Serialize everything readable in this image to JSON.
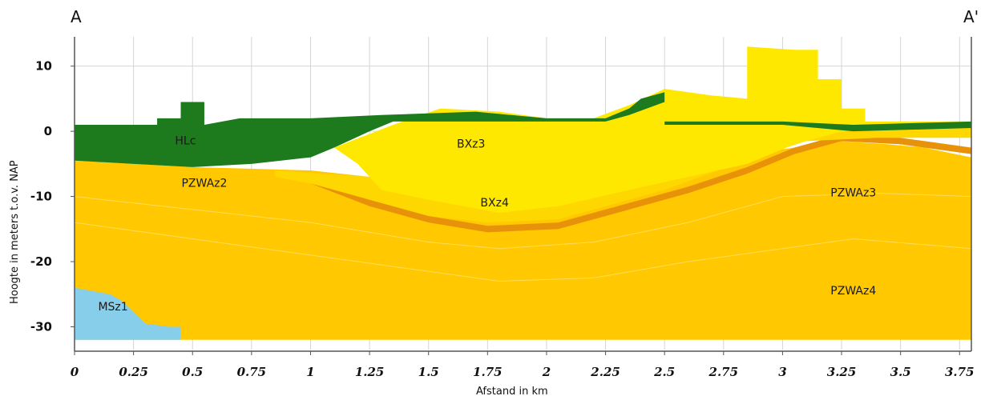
{
  "chart_data": {
    "type": "area",
    "section_labels": {
      "left": "A",
      "right": "A'"
    },
    "xlabel": "Afstand in km",
    "ylabel": "Hoogte in meters t.o.v. NAP",
    "xlim": [
      0,
      3.8
    ],
    "ylim": [
      -33.5,
      14.5
    ],
    "x_ticks": [
      "0",
      "0.25",
      "0.5",
      "0.75",
      "1",
      "1.25",
      "1.5",
      "1.75",
      "2",
      "2.25",
      "2.5",
      "2.75",
      "3",
      "3.25",
      "3.5",
      "3.75"
    ],
    "y_ticks": [
      "10",
      "0",
      "-10",
      "-20",
      "-30"
    ],
    "grid": true,
    "layers": [
      {
        "id": "PZWAz4",
        "label": "PZWAz4",
        "color": "#ffc800",
        "label_pos": [
          3.3,
          -25
        ],
        "top": [
          [
            0,
            -4.5
          ],
          [
            0.5,
            -5.5
          ],
          [
            1,
            -6
          ],
          [
            1.5,
            -8
          ],
          [
            2,
            -9
          ],
          [
            2.5,
            -6
          ],
          [
            2.85,
            -3.5
          ],
          [
            3.05,
            -2.5
          ],
          [
            3.25,
            -1.5
          ],
          [
            3.45,
            -2
          ],
          [
            3.6,
            -2.5
          ],
          [
            3.8,
            -4
          ]
        ],
        "bottom": [
          [
            0,
            -32
          ],
          [
            3.8,
            -32
          ]
        ]
      },
      {
        "id": "PZWAz3",
        "label": "PZWAz3",
        "color": "#ffc800",
        "label_pos": [
          3.3,
          -10
        ]
      },
      {
        "id": "PZWAz2",
        "label": "PZWAz2",
        "color": "#ffc800",
        "label_pos": [
          0.55,
          -8.5
        ]
      },
      {
        "id": "BXz4",
        "label": "BXz4",
        "color": "#ffd700",
        "label_pos": [
          1.78,
          -11.5
        ],
        "top": [
          [
            0.85,
            -6
          ],
          [
            1.25,
            -7
          ],
          [
            1.5,
            -6.5
          ],
          [
            1.9,
            -6
          ],
          [
            2.2,
            -4.5
          ],
          [
            2.5,
            -3
          ],
          [
            2.85,
            -1
          ],
          [
            3.2,
            0.5
          ],
          [
            3.5,
            1
          ],
          [
            3.8,
            1
          ]
        ],
        "bottom": [
          [
            0.85,
            -7
          ],
          [
            1,
            -8
          ],
          [
            1.3,
            -11
          ],
          [
            1.5,
            -13
          ],
          [
            1.75,
            -14
          ],
          [
            2.05,
            -13.5
          ],
          [
            2.2,
            -12
          ],
          [
            2.5,
            -9
          ],
          [
            2.8,
            -5
          ],
          [
            3.1,
            -1.5
          ],
          [
            3.4,
            -1
          ],
          [
            3.8,
            -1
          ]
        ]
      },
      {
        "id": "BXz3",
        "label": "BXz3",
        "color": "#ffe800",
        "label_pos": [
          1.68,
          -2.5
        ],
        "top": [
          [
            1.1,
            -2.5
          ],
          [
            1.35,
            1
          ],
          [
            1.55,
            3.5
          ],
          [
            1.8,
            3
          ],
          [
            2,
            2
          ],
          [
            2.2,
            2
          ],
          [
            2.35,
            4
          ],
          [
            2.5,
            6.5
          ],
          [
            2.7,
            5.5
          ],
          [
            2.85,
            5
          ],
          [
            2.85,
            13
          ],
          [
            3.05,
            12.5
          ],
          [
            3.15,
            12.5
          ],
          [
            3.15,
            8
          ],
          [
            3.25,
            8
          ],
          [
            3.25,
            3.5
          ],
          [
            3.35,
            3.5
          ],
          [
            3.35,
            1.5
          ],
          [
            3.8,
            1.5
          ]
        ],
        "bottom": [
          [
            1.1,
            -2.5
          ],
          [
            1.2,
            -5
          ],
          [
            1.3,
            -9
          ],
          [
            1.5,
            -10.5
          ],
          [
            1.8,
            -12.5
          ],
          [
            2.05,
            -11.5
          ],
          [
            2.35,
            -9
          ],
          [
            2.6,
            -7
          ],
          [
            2.85,
            -5
          ],
          [
            3.05,
            -2
          ],
          [
            3.25,
            0
          ],
          [
            3.5,
            0.5
          ],
          [
            3.8,
            0.5
          ]
        ]
      },
      {
        "id": "HLc",
        "label": "HLc",
        "color": "#1d7b1d",
        "label_pos": [
          0.47,
          -2
        ],
        "top": [
          [
            0,
            1
          ],
          [
            0.35,
            1
          ],
          [
            0.35,
            2
          ],
          [
            0.45,
            2
          ],
          [
            0.45,
            4.5
          ],
          [
            0.55,
            4.5
          ],
          [
            0.55,
            1
          ],
          [
            0.7,
            2
          ],
          [
            1.0,
            2
          ],
          [
            1.3,
            2.5
          ],
          [
            1.7,
            3
          ],
          [
            2.0,
            2
          ],
          [
            2.25,
            2
          ],
          [
            2.35,
            3.5
          ],
          [
            2.4,
            5
          ],
          [
            2.5,
            6
          ],
          [
            2.5,
            1.5
          ],
          [
            3.0,
            1.5
          ],
          [
            3.3,
            1
          ],
          [
            3.8,
            1.5
          ]
        ],
        "bottom": [
          [
            0,
            -4.5
          ],
          [
            0.25,
            -5
          ],
          [
            0.5,
            -5.5
          ],
          [
            0.75,
            -5
          ],
          [
            1.0,
            -4
          ],
          [
            1.1,
            -2.5
          ],
          [
            1.25,
            0
          ],
          [
            1.35,
            1.5
          ],
          [
            1.35,
            1.5
          ],
          [
            2.25,
            1.5
          ],
          [
            2.35,
            2.5
          ],
          [
            2.5,
            4.5
          ],
          [
            2.5,
            1
          ],
          [
            3.0,
            1
          ],
          [
            3.3,
            0
          ],
          [
            3.8,
            0.5
          ]
        ]
      },
      {
        "id": "MSz1",
        "label": "MSz1",
        "color": "#87ceeb",
        "label_pos": [
          0.1,
          -27.5
        ],
        "top": [
          [
            0,
            -24
          ],
          [
            0.15,
            -25
          ],
          [
            0.2,
            -26
          ],
          [
            0.3,
            -29.5
          ],
          [
            0.4,
            -30
          ],
          [
            0.45,
            -30
          ]
        ],
        "bottom": [
          [
            0,
            -32
          ],
          [
            0.45,
            -32
          ]
        ]
      }
    ],
    "bands": [
      {
        "id": "PZWA-base-band",
        "color": "#e8920a",
        "points": [
          [
            1.0,
            -7.5
          ],
          [
            1.25,
            -11
          ],
          [
            1.5,
            -13.5
          ],
          [
            1.75,
            -15
          ],
          [
            2.05,
            -14.5
          ],
          [
            2.3,
            -12
          ],
          [
            2.6,
            -9
          ],
          [
            2.85,
            -6
          ],
          [
            3.05,
            -3
          ],
          [
            3.25,
            -1
          ],
          [
            3.5,
            -1.5
          ],
          [
            3.8,
            -3
          ]
        ],
        "thickness": 1.0
      }
    ]
  }
}
